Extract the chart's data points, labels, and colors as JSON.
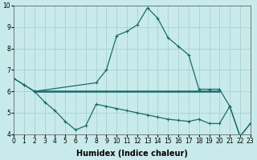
{
  "xlabel": "Humidex (Indice chaleur)",
  "curve_upper_x": [
    0,
    1,
    2,
    8,
    9,
    10,
    11,
    12,
    13,
    14,
    15,
    16,
    17,
    18,
    19,
    20,
    21,
    22,
    23
  ],
  "curve_upper_y": [
    6.6,
    6.3,
    6.0,
    6.4,
    7.0,
    8.6,
    8.8,
    9.1,
    9.9,
    9.4,
    8.5,
    8.1,
    7.7,
    6.1,
    6.1,
    6.1,
    5.3,
    3.9,
    4.5
  ],
  "curve_lower_x": [
    0,
    1,
    2,
    3,
    4,
    5,
    6,
    7,
    8,
    9,
    10,
    11,
    12,
    13,
    14,
    15,
    16,
    17,
    18,
    19,
    20,
    21,
    22,
    23
  ],
  "curve_lower_y": [
    6.6,
    6.3,
    6.0,
    5.5,
    5.1,
    4.6,
    4.2,
    4.4,
    5.4,
    5.3,
    5.2,
    5.1,
    5.0,
    4.9,
    4.8,
    4.7,
    4.65,
    4.6,
    4.7,
    4.5,
    4.5,
    5.3,
    3.9,
    4.5
  ],
  "hline_y": 6.0,
  "hline_x_start": 2,
  "hline_x_end": 20,
  "ylim": [
    4,
    10
  ],
  "xlim": [
    0,
    23
  ],
  "bg_color": "#c8eaea",
  "grid_color": "#9ecece",
  "line_color": "#1a6b6b",
  "hline_color": "#1a6b6b",
  "yticks": [
    4,
    5,
    6,
    7,
    8,
    9,
    10
  ],
  "xtick_labels": [
    "0",
    "1",
    "2",
    "3",
    "4",
    "5",
    "6",
    "7",
    "8",
    "9",
    "10",
    "11",
    "12",
    "13",
    "14",
    "15",
    "16",
    "17",
    "18",
    "19",
    "20",
    "21",
    "22",
    "23"
  ],
  "xlabel_fontsize": 7,
  "tick_fontsize": 5.5
}
